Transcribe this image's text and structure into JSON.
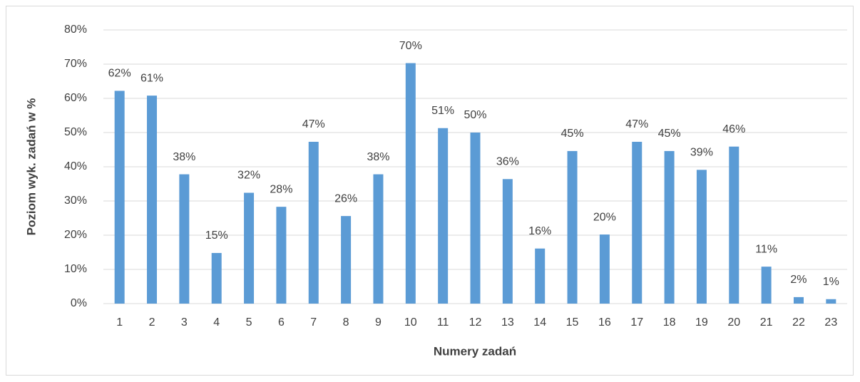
{
  "chart_data": {
    "type": "bar",
    "x_label": "Numery zadań",
    "y_label": "Poziom wyk. zadań w %",
    "categories": [
      "1",
      "2",
      "3",
      "4",
      "5",
      "6",
      "7",
      "8",
      "9",
      "10",
      "11",
      "12",
      "13",
      "14",
      "15",
      "16",
      "17",
      "18",
      "19",
      "20",
      "21",
      "22",
      "23"
    ],
    "values": [
      62.2,
      60.8,
      37.8,
      14.8,
      32.4,
      28.3,
      47.3,
      25.6,
      37.8,
      70.3,
      51.3,
      50.0,
      36.4,
      16.1,
      44.6,
      20.2,
      47.3,
      44.6,
      39.1,
      45.9,
      10.8,
      1.9,
      1.3
    ],
    "value_labels": [
      "62%",
      "61%",
      "38%",
      "15%",
      "32%",
      "28%",
      "47%",
      "26%",
      "38%",
      "70%",
      "51%",
      "50%",
      "36%",
      "16%",
      "45%",
      "20%",
      "47%",
      "45%",
      "39%",
      "46%",
      "11%",
      "2%",
      "1%"
    ],
    "color": "#5b9bd5",
    "ylim": [
      0,
      80
    ],
    "yticks": [
      {
        "value": 0,
        "label": "0%"
      },
      {
        "value": 10,
        "label": "10%"
      },
      {
        "value": 20,
        "label": "20%"
      },
      {
        "value": 30,
        "label": "30%"
      },
      {
        "value": 40,
        "label": "40%"
      },
      {
        "value": 50,
        "label": "50%"
      },
      {
        "value": 60,
        "label": "60%"
      },
      {
        "value": 70,
        "label": "70%"
      },
      {
        "value": 80,
        "label": "80%"
      }
    ],
    "grid": true
  }
}
